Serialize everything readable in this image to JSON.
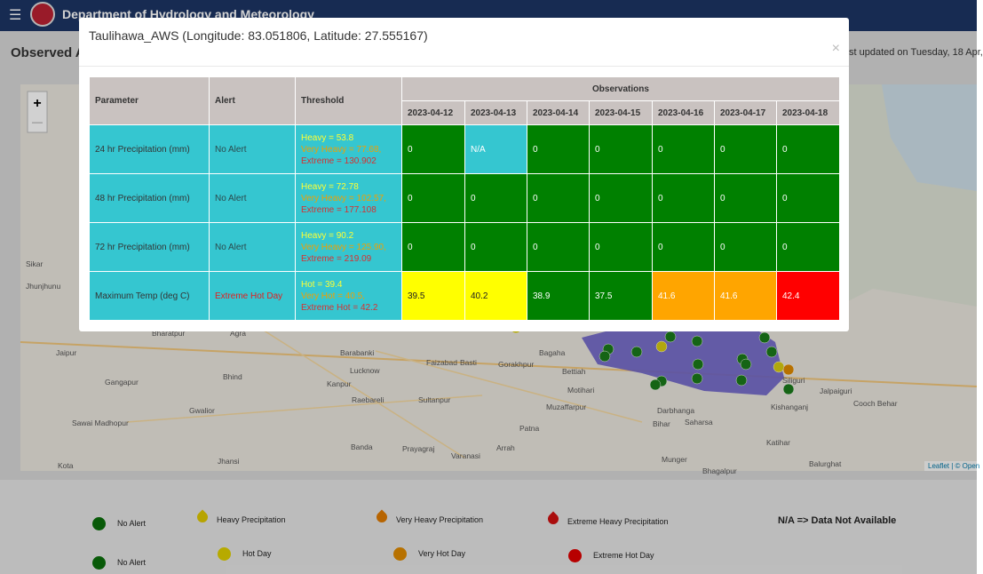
{
  "header": {
    "title": "Department of Hydrology and Meteorology"
  },
  "background": {
    "heading": "Observed A",
    "last_updated": "st updated on Tuesday, 18 Apr,"
  },
  "map": {
    "zoom_in": "+",
    "zoom_out": "—",
    "labels": [
      "Jaipur",
      "Bharatpur",
      "Agra",
      "Gangapur",
      "Bhind",
      "Gwalior",
      "Sawai Madhopur",
      "Kota",
      "Jhansi",
      "Kanpur",
      "Lucknow",
      "Raebareli",
      "Barabanki",
      "Faizabad",
      "Basti",
      "Gorakhpur",
      "Sultanpur",
      "Prayagraj",
      "Varanasi",
      "Banda",
      "Bagaha",
      "Bettiah",
      "Motihari",
      "Muzaffarpur",
      "Darbhanga",
      "Saharsa",
      "Patna",
      "Arrah",
      "Bihar",
      "Munger",
      "Bhagalpur",
      "Kishanganj",
      "Katihar",
      "Siliguri",
      "Jalpaiguri",
      "Cooch Behar",
      "Balurghat",
      "Jhunjhunu",
      "Sikar"
    ],
    "attribution": "Leaflet | © Open"
  },
  "modal": {
    "title": "Taulihawa_AWS (Longitude: 83.051806, Latitude: 27.555167)",
    "close": "×",
    "table": {
      "headers": [
        "Parameter",
        "Alert",
        "Threshold"
      ],
      "observations_header": "Observations",
      "dates": [
        "2023-04-12",
        "2023-04-13",
        "2023-04-14",
        "2023-04-15",
        "2023-04-16",
        "2023-04-17",
        "2023-04-18"
      ],
      "rows": [
        {
          "parameter": "24 hr Precipitation (mm)",
          "alert": "No Alert",
          "alert_color": "#2b4a4d",
          "threshold": [
            "Heavy = 53.8",
            "Very Heavy = 77.68,",
            "Extreme = 130.902"
          ],
          "observations": [
            {
              "value": "0",
              "color": "#008000"
            },
            {
              "value": "N/A",
              "color": "#35c6d0"
            },
            {
              "value": "0",
              "color": "#008000"
            },
            {
              "value": "0",
              "color": "#008000"
            },
            {
              "value": "0",
              "color": "#008000"
            },
            {
              "value": "0",
              "color": "#008000"
            },
            {
              "value": "0",
              "color": "#008000"
            }
          ]
        },
        {
          "parameter": "48 hr Precipitation (mm)",
          "alert": "No Alert",
          "alert_color": "#2b4a4d",
          "threshold": [
            "Heavy = 72.78",
            "Very Heavy = 102.57,",
            "Extreme = 177.108"
          ],
          "observations": [
            {
              "value": "0",
              "color": "#008000"
            },
            {
              "value": "0",
              "color": "#008000"
            },
            {
              "value": "0",
              "color": "#008000"
            },
            {
              "value": "0",
              "color": "#008000"
            },
            {
              "value": "0",
              "color": "#008000"
            },
            {
              "value": "0",
              "color": "#008000"
            },
            {
              "value": "0",
              "color": "#008000"
            }
          ]
        },
        {
          "parameter": "72 hr Precipitation (mm)",
          "alert": "No Alert",
          "alert_color": "#2b4a4d",
          "threshold": [
            "Heavy = 90.2",
            "Very Heavy = 125.90,",
            "Extreme = 219.09"
          ],
          "observations": [
            {
              "value": "0",
              "color": "#008000"
            },
            {
              "value": "0",
              "color": "#008000"
            },
            {
              "value": "0",
              "color": "#008000"
            },
            {
              "value": "0",
              "color": "#008000"
            },
            {
              "value": "0",
              "color": "#008000"
            },
            {
              "value": "0",
              "color": "#008000"
            },
            {
              "value": "0",
              "color": "#008000"
            }
          ]
        },
        {
          "parameter": "Maximum Temp (deg C)",
          "alert": "Extreme Hot Day",
          "alert_color": "#e02020",
          "threshold": [
            "Hot = 39.4",
            "Very Hot = 40.5,",
            "Extreme Hot = 42.2"
          ],
          "observations": [
            {
              "value": "39.5",
              "color": "#ffff00"
            },
            {
              "value": "40.2",
              "color": "#ffff00"
            },
            {
              "value": "38.9",
              "color": "#008000"
            },
            {
              "value": "37.5",
              "color": "#008000"
            },
            {
              "value": "41.6",
              "color": "#ffa500"
            },
            {
              "value": "41.6",
              "color": "#ffa500"
            },
            {
              "value": "42.4",
              "color": "#ff0000"
            }
          ]
        }
      ]
    }
  },
  "legend": {
    "items": [
      {
        "label": "No Alert",
        "color": "#0a6e0a",
        "shape": "circle"
      },
      {
        "label": "Heavy Precipitation",
        "color": "#e0c800",
        "shape": "drop"
      },
      {
        "label": "Very Heavy Precipitation",
        "color": "#e07a00",
        "shape": "drop"
      },
      {
        "label": "Extreme Heavy Precipitation",
        "color": "#d01010",
        "shape": "drop"
      },
      {
        "label": "No Alert",
        "color": "#0a6e0a",
        "shape": "circle"
      },
      {
        "label": "Hot Day",
        "color": "#e0d000",
        "shape": "circle"
      },
      {
        "label": "Very Hot Day",
        "color": "#e08a00",
        "shape": "circle"
      },
      {
        "label": "Extreme Hot Day",
        "color": "#e00000",
        "shape": "circle"
      }
    ],
    "na_note": "N/A => Data Not Available"
  }
}
